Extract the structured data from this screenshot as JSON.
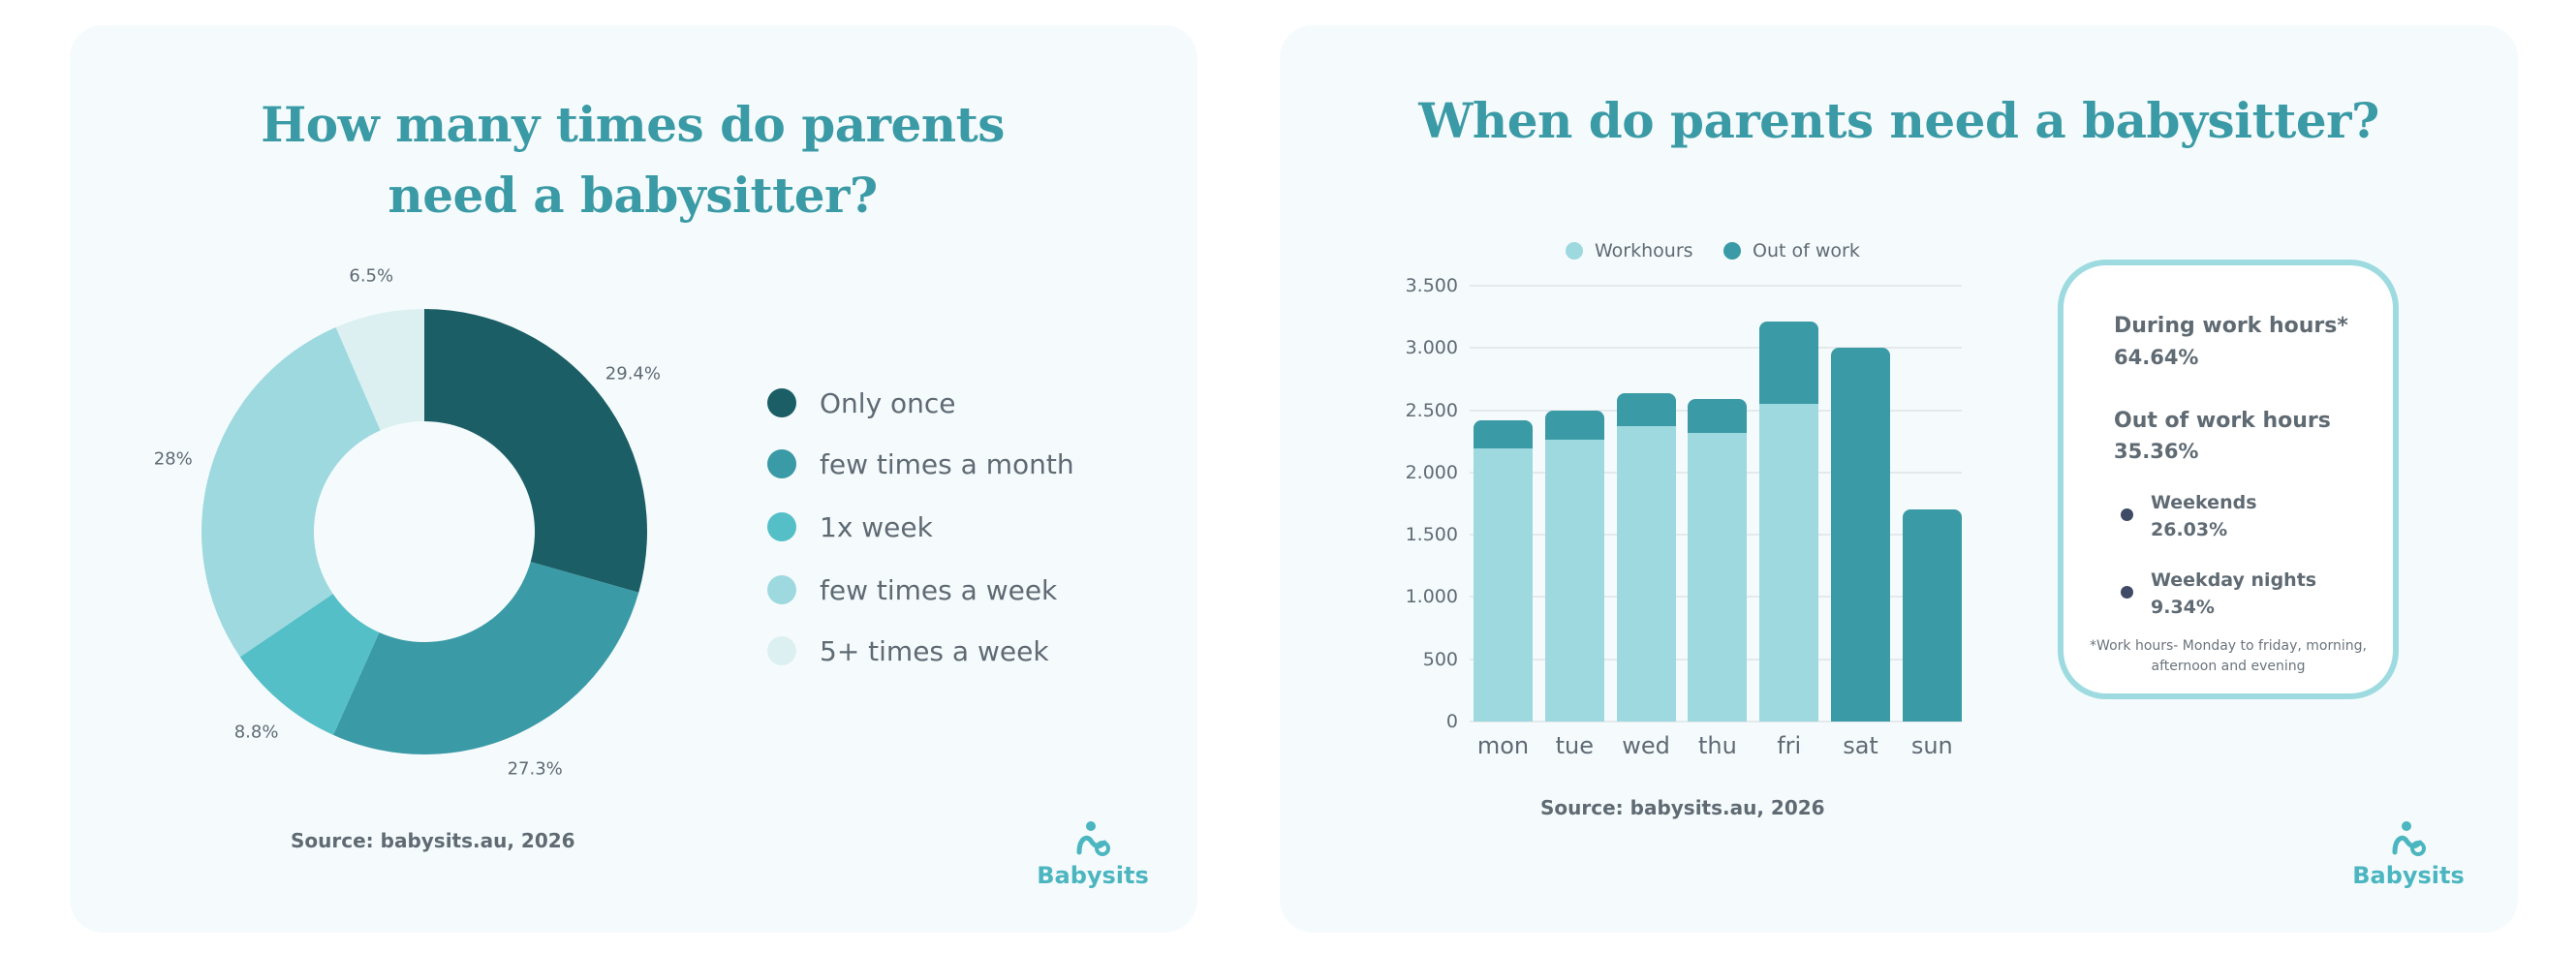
{
  "left_panel": {
    "title_line1": "How many times do parents",
    "title_line2": "need a babysitter?",
    "source": "Source: babysits.au, 2026",
    "logo_text": "Babysits"
  },
  "right_panel": {
    "title": "When do parents need a babysitter?",
    "source": "Source: babysits.au, 2026",
    "logo_text": "Babysits",
    "info_box": {
      "during_label": "During work hours*",
      "during_value": "64.64%",
      "out_label": "Out of work hours",
      "out_value": "35.36%",
      "weekends_label": "Weekends",
      "weekends_value": "26.03%",
      "weeknights_label": "Weekday nights",
      "weeknights_value": "9.34%",
      "footnote_line1": "*Work hours- Monday to friday, morning,",
      "footnote_line2": "afternoon and evening"
    }
  },
  "colors": {
    "title": "#3a9aa5",
    "text": "#5f6a73",
    "card_bg": "#f5fbfd",
    "box_border": "#9ddbe0"
  },
  "chart_data": [
    {
      "type": "pie",
      "donut": true,
      "title": "How many times do parents need a babysitter?",
      "legend_position": "right",
      "categories": [
        "Only once",
        "few times a month",
        "1x week",
        "few times a week",
        "5+ times a week"
      ],
      "values": [
        29.4,
        27.3,
        8.8,
        28,
        6.5
      ],
      "labels": [
        "29.4%",
        "27.3%",
        "8.8%",
        "28%",
        "6.5%"
      ],
      "colors": [
        "#1b5e66",
        "#3a9aa6",
        "#55bfc8",
        "#9ed9df",
        "#dcf0f2"
      ]
    },
    {
      "type": "bar",
      "stacked": true,
      "title": "When do parents need a babysitter?",
      "legend_position": "top",
      "categories": [
        "mon",
        "tue",
        "wed",
        "thu",
        "fri",
        "sat",
        "sun"
      ],
      "series": [
        {
          "name": "Workhours",
          "color": "#9ed9df",
          "values": [
            2190,
            2260,
            2370,
            2320,
            2550,
            0,
            0
          ]
        },
        {
          "name": "Out of work",
          "color": "#3a9aa6",
          "values": [
            230,
            240,
            270,
            270,
            660,
            3000,
            1700
          ]
        }
      ],
      "ylim": [
        0,
        3500
      ],
      "yticks": [
        0,
        500,
        1000,
        1500,
        2000,
        2500,
        3000,
        3500
      ],
      "ytick_labels": [
        "0",
        "500",
        "1.000",
        "1.500",
        "2.000",
        "2.500",
        "3.000",
        "3.500"
      ],
      "grid": true
    }
  ]
}
